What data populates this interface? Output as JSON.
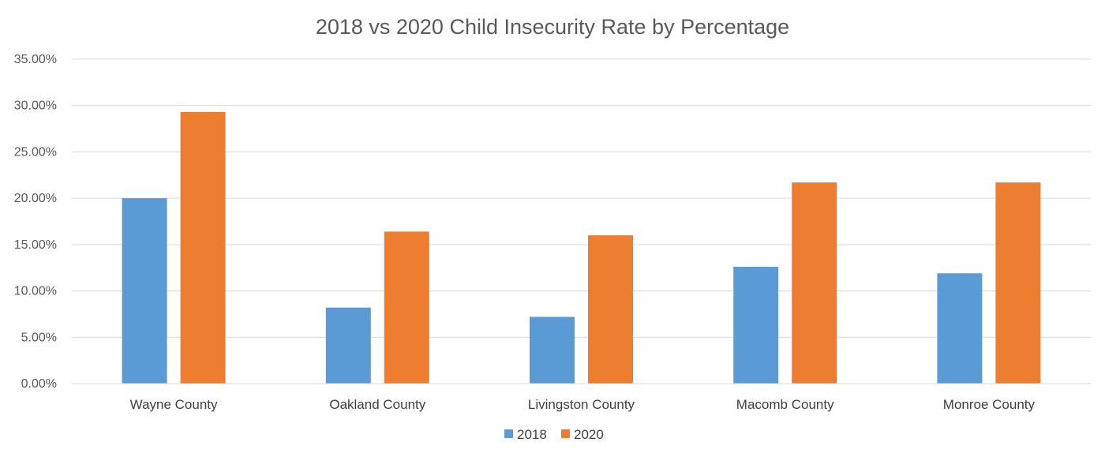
{
  "chart_data": {
    "type": "bar",
    "title": "2018 vs 2020 Child Insecurity Rate by Percentage",
    "categories": [
      "Wayne County",
      "Oakland County",
      "Livingston County",
      "Macomb County",
      "Monroe County"
    ],
    "series": [
      {
        "name": "2018",
        "color": "#5b9bd5",
        "values": [
          20.0,
          8.2,
          7.2,
          12.6,
          11.9
        ]
      },
      {
        "name": "2020",
        "color": "#ed7d31",
        "values": [
          29.3,
          16.4,
          16.0,
          21.7,
          21.7
        ]
      }
    ],
    "ylim": [
      0,
      35
    ],
    "yticks": [
      0,
      5,
      10,
      15,
      20,
      25,
      30,
      35
    ],
    "ytick_labels": [
      "0.00%",
      "5.00%",
      "10.00%",
      "15.00%",
      "20.00%",
      "25.00%",
      "30.00%",
      "35.00%"
    ],
    "grid": true,
    "legend_position": "bottom"
  }
}
